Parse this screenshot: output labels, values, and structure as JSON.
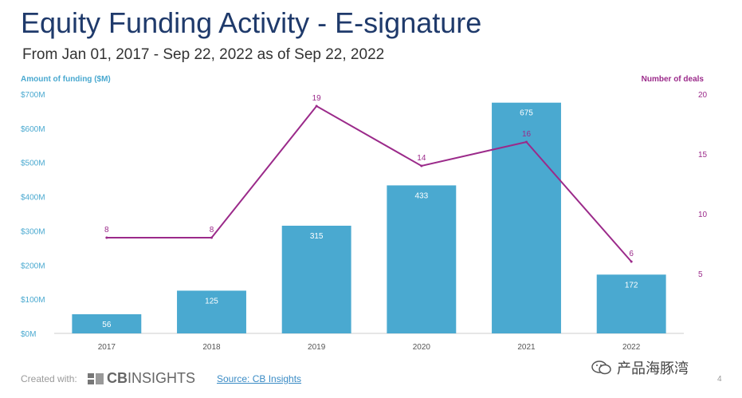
{
  "header": {
    "title": "Equity Funding Activity - E-signature",
    "subtitle": "From Jan 01, 2017 - Sep 22, 2022 as of Sep 22, 2022"
  },
  "footer": {
    "created_with": "Created with:",
    "logo_text_bold": "CB",
    "logo_text_rest": "INSIGHTS",
    "source_link": "Source: CB Insights",
    "watermark": "产品海豚湾",
    "page_number": "4"
  },
  "colors": {
    "bar": "#4aa9d0",
    "line": "#9b2a8a",
    "title": "#1f3a6b"
  },
  "chart_data": {
    "type": "bar",
    "title": "Equity Funding Activity - E-signature",
    "categories": [
      "2017",
      "2018",
      "2019",
      "2020",
      "2021",
      "2022"
    ],
    "series": [
      {
        "name": "Amount of funding ($M)",
        "type": "bar",
        "axis": "left",
        "values": [
          56,
          125,
          315,
          433,
          675,
          172
        ]
      },
      {
        "name": "Number of deals",
        "type": "line",
        "axis": "right",
        "values": [
          8,
          8,
          19,
          14,
          16,
          6
        ]
      }
    ],
    "ylabel": "Amount of funding ($M)",
    "y2label": "Number of deals",
    "ylim": [
      0,
      700
    ],
    "y2lim": [
      0,
      20
    ],
    "yticks": [
      "$0M",
      "$100M",
      "$200M",
      "$300M",
      "$400M",
      "$500M",
      "$600M",
      "$700M"
    ],
    "y2ticks": [
      "5",
      "10",
      "15",
      "20"
    ]
  }
}
